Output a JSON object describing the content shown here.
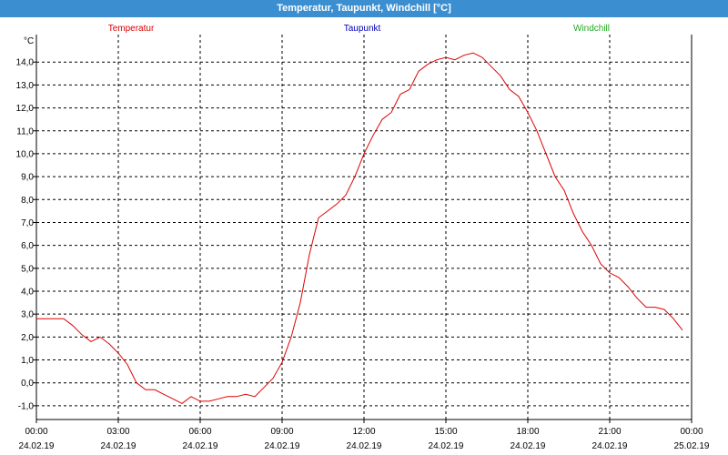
{
  "window": {
    "title": "Temperatur, Taupunkt, Windchill [°C]"
  },
  "colors": {
    "titlebar": "#3b8fd0",
    "temperatur": "#dd0000",
    "taupunkt": "#0000bb",
    "windchill": "#22aa22",
    "grid": "#000000"
  },
  "chart_data": {
    "type": "line",
    "ylabel": "°C",
    "ylim": [
      -1.6,
      15.2
    ],
    "yticks": [
      -1.0,
      0.0,
      1.0,
      2.0,
      3.0,
      4.0,
      5.0,
      6.0,
      7.0,
      8.0,
      9.0,
      10.0,
      11.0,
      12.0,
      13.0,
      14.0
    ],
    "ytick_labels": [
      "-1,0",
      "0,0",
      "1,0",
      "2,0",
      "3,0",
      "4,0",
      "5,0",
      "6,0",
      "7,0",
      "8,0",
      "9,0",
      "10,0",
      "11,0",
      "12,0",
      "13,0",
      "14,0"
    ],
    "xlim": [
      "24.02.19 00:00",
      "25.02.19 00:00"
    ],
    "xticks": [
      {
        "time": "00:00",
        "date": "24.02.19"
      },
      {
        "time": "03:00",
        "date": "24.02.19"
      },
      {
        "time": "06:00",
        "date": "24.02.19"
      },
      {
        "time": "09:00",
        "date": "24.02.19"
      },
      {
        "time": "12:00",
        "date": "24.02.19"
      },
      {
        "time": "15:00",
        "date": "24.02.19"
      },
      {
        "time": "18:00",
        "date": "24.02.19"
      },
      {
        "time": "21:00",
        "date": "24.02.19"
      },
      {
        "time": "00:00",
        "date": "25.02.19"
      }
    ],
    "legend": [
      "Temperatur",
      "Taupunkt",
      "Windchill"
    ],
    "grid": true,
    "series": [
      {
        "name": "Temperatur",
        "x": [
          "00:00",
          "00:20",
          "00:40",
          "01:00",
          "01:20",
          "01:40",
          "02:00",
          "02:20",
          "02:40",
          "03:00",
          "03:20",
          "03:40",
          "04:00",
          "04:20",
          "04:40",
          "05:00",
          "05:20",
          "05:40",
          "06:00",
          "06:20",
          "06:40",
          "07:00",
          "07:20",
          "07:40",
          "08:00",
          "08:20",
          "08:40",
          "09:00",
          "09:20",
          "09:40",
          "10:00",
          "10:20",
          "10:40",
          "11:00",
          "11:20",
          "11:40",
          "12:00",
          "12:20",
          "12:40",
          "13:00",
          "13:20",
          "13:40",
          "14:00",
          "14:20",
          "14:40",
          "15:00",
          "15:20",
          "15:40",
          "16:00",
          "16:20",
          "16:40",
          "17:00",
          "17:20",
          "17:40",
          "18:00",
          "18:20",
          "18:40",
          "19:00",
          "19:20",
          "19:40",
          "20:00",
          "20:20",
          "20:40",
          "21:00",
          "21:20",
          "21:40",
          "22:00",
          "22:20",
          "22:40",
          "23:00",
          "23:20",
          "23:40"
        ],
        "values": [
          2.8,
          2.8,
          2.8,
          2.8,
          2.5,
          2.1,
          1.8,
          2.0,
          1.7,
          1.3,
          0.8,
          0.0,
          -0.3,
          -0.3,
          -0.5,
          -0.7,
          -0.9,
          -0.6,
          -0.8,
          -0.8,
          -0.7,
          -0.6,
          -0.6,
          -0.5,
          -0.6,
          -0.2,
          0.2,
          0.9,
          2.0,
          3.5,
          5.6,
          7.2,
          7.5,
          7.8,
          8.2,
          9.0,
          10.0,
          10.8,
          11.5,
          11.8,
          12.6,
          12.8,
          13.6,
          13.9,
          14.1,
          14.2,
          14.1,
          14.3,
          14.4,
          14.2,
          13.8,
          13.4,
          12.8,
          12.5,
          11.8,
          11.0,
          10.0,
          9.0,
          8.4,
          7.4,
          6.6,
          6.0,
          5.2,
          4.8,
          4.6,
          4.2,
          3.7,
          3.3,
          3.3,
          3.2,
          2.8,
          2.3
        ]
      }
    ]
  }
}
